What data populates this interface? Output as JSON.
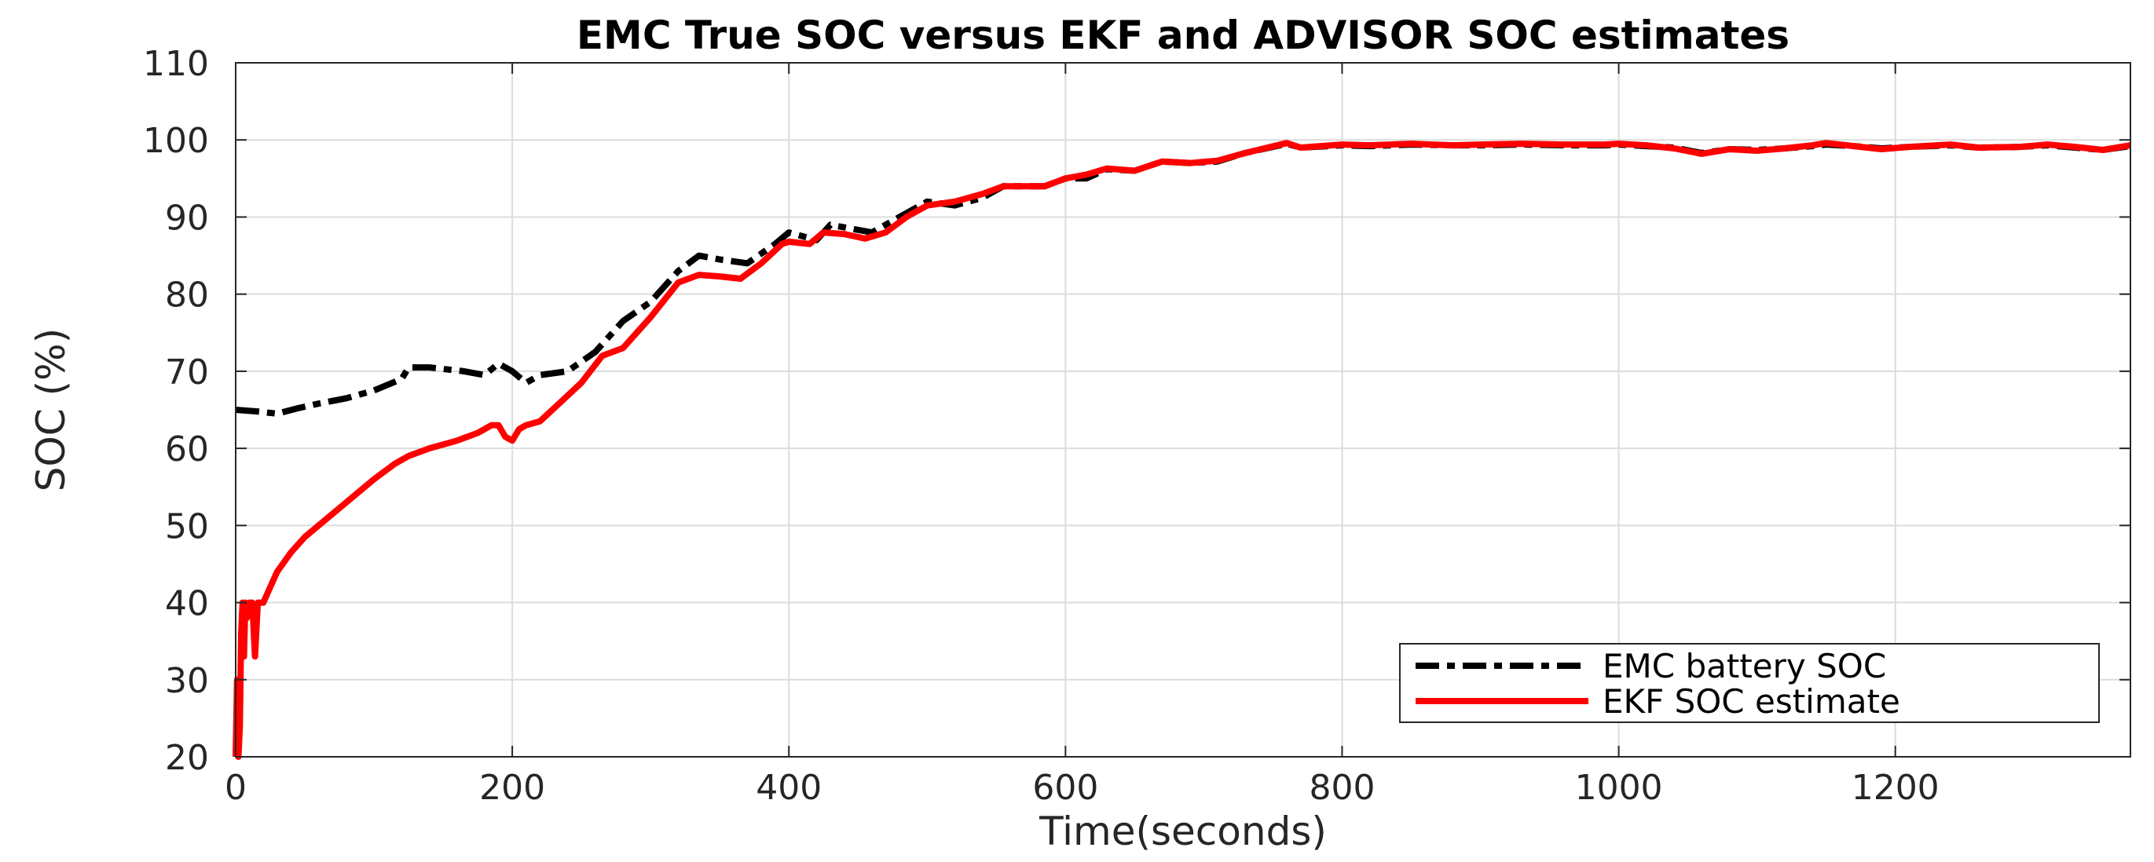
{
  "chart_data": {
    "type": "line",
    "title": "EMC True SOC  versus EKF and ADVISOR SOC estimates",
    "xlabel": "Time(seconds)",
    "ylabel": "SOC (%)",
    "xlim": [
      0,
      1370
    ],
    "ylim": [
      20,
      110
    ],
    "xticks": [
      0,
      200,
      400,
      600,
      800,
      1000,
      1200
    ],
    "yticks": [
      20,
      30,
      40,
      50,
      60,
      70,
      80,
      90,
      100,
      110
    ],
    "xtick_labels": [
      "0",
      "200",
      "400",
      "600",
      "800",
      "1000",
      "1200"
    ],
    "ytick_labels": [
      "20",
      "30",
      "40",
      "50",
      "60",
      "70",
      "80",
      "90",
      "100",
      "110"
    ],
    "grid": true,
    "legend_position": "bottom-right",
    "series": [
      {
        "name": "EMC battery SOC",
        "color": "#000000",
        "style": "dashdot",
        "x": [
          0,
          15,
          30,
          45,
          60,
          80,
          100,
          120,
          125,
          140,
          165,
          180,
          190,
          200,
          210,
          220,
          240,
          260,
          280,
          300,
          320,
          335,
          350,
          370,
          390,
          400,
          420,
          430,
          445,
          460,
          480,
          500,
          520,
          540,
          555,
          570,
          585,
          600,
          615,
          630,
          650,
          670,
          690,
          710,
          730,
          760,
          770,
          800,
          820,
          850,
          880,
          900,
          930,
          960,
          990,
          1000,
          1020,
          1040,
          1060,
          1080,
          1100,
          1120,
          1140,
          1150,
          1170,
          1190,
          1210,
          1240,
          1260,
          1290,
          1310,
          1330,
          1350,
          1370
        ],
        "y": [
          65,
          64.8,
          64.5,
          65.2,
          65.8,
          66.5,
          67.5,
          69,
          70.5,
          70.5,
          70,
          69.5,
          71,
          70,
          68.5,
          69.5,
          70,
          72.5,
          76.5,
          79,
          83,
          85,
          84.5,
          84,
          86.5,
          88,
          87,
          89,
          88.5,
          88,
          90,
          92,
          91.5,
          92.5,
          94,
          94,
          94,
          95,
          95,
          96.2,
          96,
          97.2,
          97,
          97.2,
          98.3,
          99.5,
          99,
          99.3,
          99.2,
          99.4,
          99.3,
          99.3,
          99.4,
          99.3,
          99.3,
          99.4,
          99.2,
          99,
          98.3,
          98.8,
          98.7,
          98.9,
          99.2,
          99.4,
          99.2,
          98.9,
          99.1,
          99.3,
          99,
          99.1,
          99.3,
          99,
          98.7,
          99.2
        ]
      },
      {
        "name": "EKF SOC estimate",
        "color": "#ff0000",
        "style": "solid",
        "x": [
          0,
          1,
          2,
          3,
          4,
          5,
          6,
          7,
          8,
          10,
          12,
          14,
          16,
          20,
          25,
          30,
          40,
          50,
          60,
          80,
          100,
          115,
          125,
          140,
          160,
          175,
          185,
          190,
          195,
          200,
          205,
          210,
          220,
          235,
          250,
          265,
          280,
          300,
          320,
          335,
          350,
          365,
          380,
          395,
          400,
          415,
          425,
          440,
          455,
          470,
          485,
          500,
          520,
          540,
          555,
          570,
          585,
          600,
          615,
          630,
          650,
          670,
          690,
          710,
          730,
          760,
          770,
          800,
          820,
          850,
          880,
          900,
          930,
          960,
          990,
          1000,
          1020,
          1040,
          1060,
          1080,
          1100,
          1120,
          1140,
          1150,
          1170,
          1190,
          1210,
          1240,
          1260,
          1290,
          1310,
          1330,
          1350,
          1370
        ],
        "y": [
          20,
          30,
          20,
          24,
          36,
          40,
          33,
          40,
          38,
          40,
          40,
          33,
          40,
          40,
          42,
          44,
          46.5,
          48.5,
          50,
          53,
          56,
          58,
          59,
          60,
          61,
          62,
          63,
          63,
          61.5,
          61,
          62.5,
          63,
          63.5,
          66,
          68.5,
          72,
          73,
          77,
          81.5,
          82.5,
          82.3,
          82,
          84,
          86.5,
          86.8,
          86.5,
          88,
          87.8,
          87.2,
          88,
          90,
          91.5,
          92,
          93,
          94,
          94,
          94,
          95,
          95.5,
          96.3,
          96,
          97.2,
          97,
          97.3,
          98.3,
          99.6,
          99,
          99.4,
          99.3,
          99.5,
          99.3,
          99.4,
          99.5,
          99.4,
          99.4,
          99.5,
          99.3,
          98.9,
          98.2,
          98.8,
          98.6,
          98.9,
          99.3,
          99.6,
          99.2,
          98.8,
          99.1,
          99.4,
          99,
          99.1,
          99.4,
          99.1,
          98.7,
          99.3
        ]
      }
    ]
  }
}
